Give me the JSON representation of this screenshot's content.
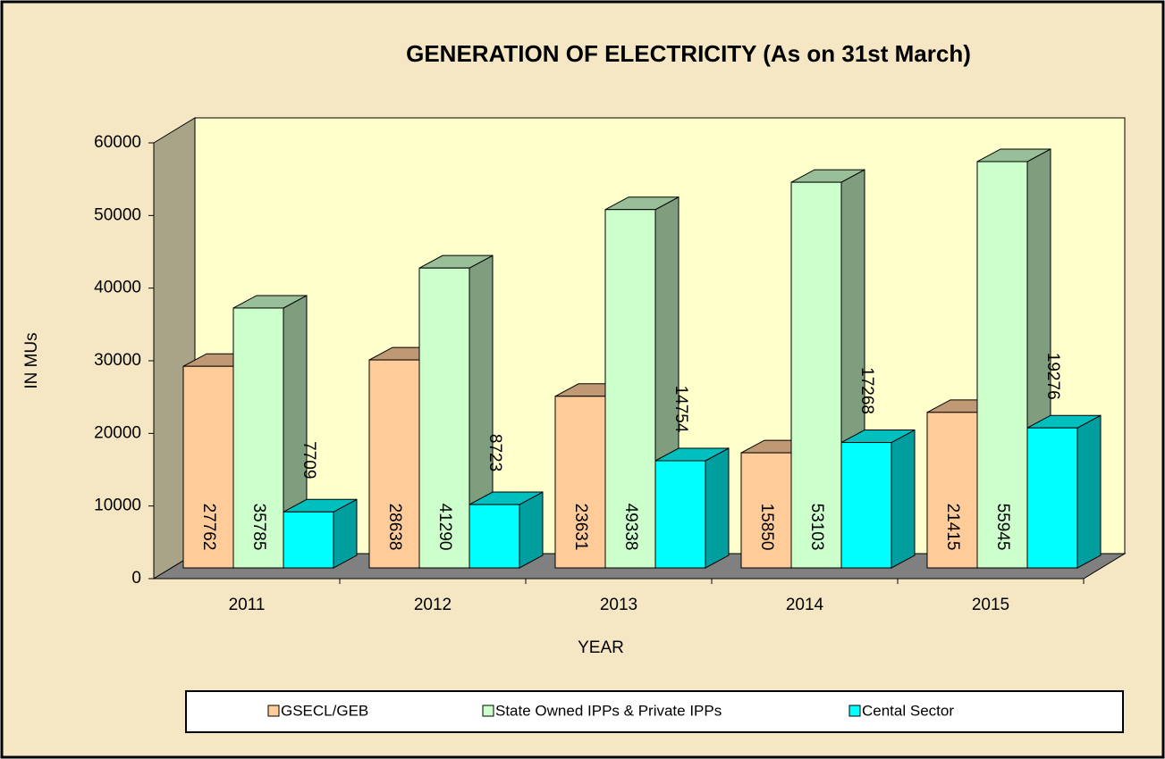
{
  "chart_data": {
    "type": "bar3d",
    "title": "GENERATION OF ELECTRICITY (As on 31st March)",
    "y_label": "IN MUs",
    "x_label": "YEAR",
    "categories": [
      "2011",
      "2012",
      "2013",
      "2014",
      "2015"
    ],
    "series": [
      {
        "name": "GSECL/GEB",
        "color": "#FFCC99",
        "values": [
          27762,
          28638,
          23631,
          15850,
          21415
        ]
      },
      {
        "name": "State Owned IPPs & Private  IPPs",
        "color": "#CCFFCC",
        "values": [
          35785,
          41290,
          49338,
          53103,
          55945
        ]
      },
      {
        "name": "Cental Sector",
        "color": "#00FFFF",
        "values": [
          7709,
          8723,
          14754,
          17268,
          19276
        ]
      }
    ],
    "ylim": [
      0,
      60000
    ],
    "yticks": [
      0,
      10000,
      20000,
      30000,
      40000,
      50000,
      60000
    ],
    "legend": "bottom"
  }
}
